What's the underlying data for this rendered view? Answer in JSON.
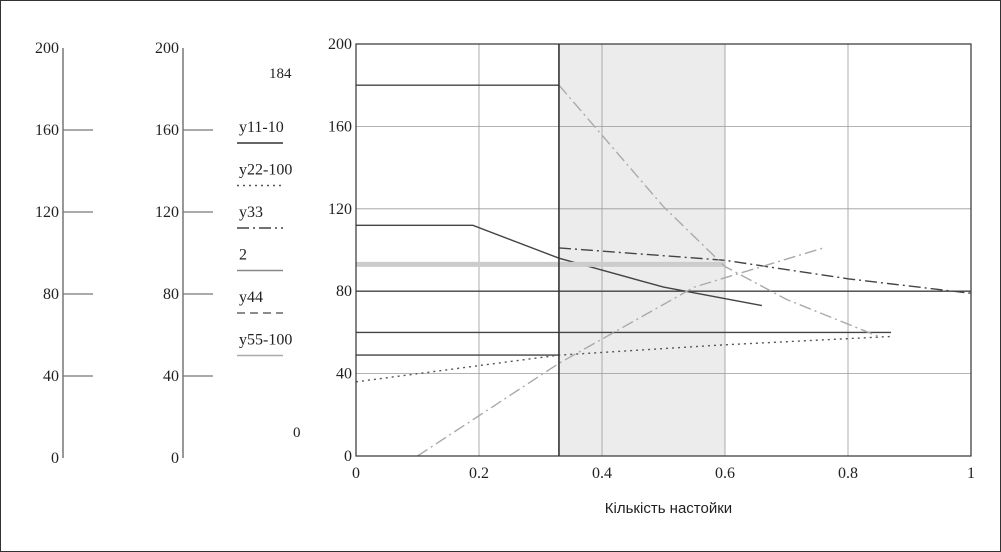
{
  "chart_data": {
    "type": "line",
    "xlabel": "Кількість настойки",
    "xlim": [
      0,
      1
    ],
    "ylim": [
      0,
      200
    ],
    "x_ticks": [
      "0",
      "0.2",
      "0.4",
      "0.6",
      "0.8",
      "1"
    ],
    "y_ticks": [
      "0",
      "40",
      "80",
      "120",
      "160",
      "200"
    ],
    "grid": true,
    "shaded_region": {
      "x": [
        0.33,
        0.6
      ]
    },
    "vertical_marker": 0.33,
    "marker_labels": {
      "top": "184",
      "bottom": "0"
    },
    "side_axes": [
      {
        "ticks": [
          "200",
          "160",
          "120",
          "80",
          "40",
          "0"
        ]
      },
      {
        "ticks": [
          "200",
          "160",
          "120",
          "80",
          "40",
          "0"
        ]
      }
    ],
    "legend_position": "left",
    "legend": [
      {
        "label": "y11-10",
        "style": "solid",
        "color": "#333333"
      },
      {
        "label": "y22-100",
        "style": "dotted",
        "color": "#555555"
      },
      {
        "label": "y33",
        "style": "dashdot",
        "color": "#444444"
      },
      {
        "label": "2",
        "style": "solid",
        "color": "#888888"
      },
      {
        "label": "y44",
        "style": "dashed",
        "color": "#666666"
      },
      {
        "label": "y55-100",
        "style": "solid",
        "color": "#aaaaaa"
      }
    ],
    "series": [
      {
        "style": "solid",
        "color": "#444444",
        "points": [
          [
            0,
            180
          ],
          [
            0.33,
            180
          ]
        ]
      },
      {
        "style": "solid",
        "color": "#444444",
        "points": [
          [
            0,
            112
          ],
          [
            0.19,
            112
          ],
          [
            0.33,
            96
          ],
          [
            0.5,
            82
          ],
          [
            0.66,
            73
          ]
        ]
      },
      {
        "style": "solid",
        "color": "#444444",
        "points": [
          [
            0,
            80
          ],
          [
            1,
            80
          ]
        ]
      },
      {
        "style": "solid",
        "color": "#444444",
        "points": [
          [
            0,
            60
          ],
          [
            0.87,
            60
          ]
        ]
      },
      {
        "style": "solid",
        "color": "#444444",
        "points": [
          [
            0,
            49
          ],
          [
            0.33,
            49
          ]
        ]
      },
      {
        "style": "dotted",
        "color": "#555555",
        "points": [
          [
            0,
            36
          ],
          [
            0.33,
            49
          ],
          [
            0.6,
            54
          ],
          [
            0.87,
            58
          ]
        ]
      },
      {
        "style": "dashdot",
        "color": "#444444",
        "points": [
          [
            0.33,
            101
          ],
          [
            0.6,
            95
          ],
          [
            0.8,
            86
          ],
          [
            1,
            79
          ]
        ]
      },
      {
        "style": "solid",
        "color": "#cccccc",
        "width": 5,
        "points": [
          [
            0,
            93
          ],
          [
            0.6,
            93
          ]
        ]
      },
      {
        "style": "dashdot",
        "color": "#aaaaaa",
        "points": [
          [
            0.33,
            180
          ],
          [
            0.5,
            121
          ],
          [
            0.6,
            92
          ],
          [
            0.7,
            76
          ],
          [
            0.85,
            58
          ]
        ]
      },
      {
        "style": "dashdot",
        "color": "#aaaaaa",
        "points": [
          [
            0.1,
            0
          ],
          [
            0.33,
            45
          ],
          [
            0.55,
            82
          ],
          [
            0.76,
            101
          ]
        ]
      }
    ]
  }
}
